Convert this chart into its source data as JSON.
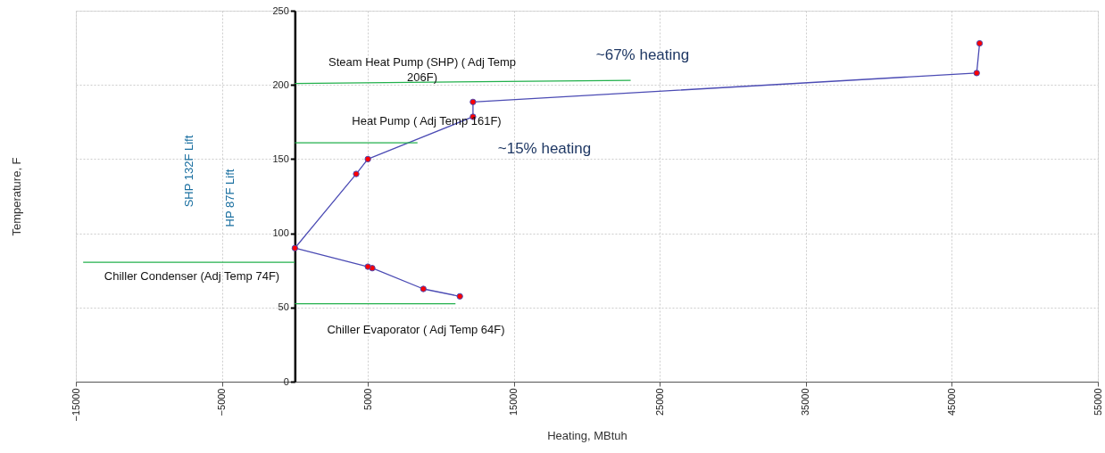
{
  "chart_data": {
    "type": "line",
    "xlabel": "Heating, MBtuh",
    "ylabel": "Temperature, F",
    "xlim": [
      -15000,
      55000
    ],
    "xticks": [
      -15000,
      -5000,
      5000,
      15000,
      25000,
      35000,
      45000,
      55000
    ],
    "ylim": [
      0,
      250
    ],
    "yticks": [
      0,
      50,
      100,
      150,
      200,
      250
    ],
    "grid": true,
    "marker": "circle",
    "line_style": "solid",
    "series": [
      {
        "color": "#4b4bb4",
        "x": [
          11300,
          8800,
          5300,
          5000,
          0,
          4200,
          5000,
          12200,
          12200,
          46700,
          46900
        ],
        "values": [
          57.5,
          62.5,
          76.5,
          77.5,
          90,
          140,
          150,
          178.5,
          188.5,
          208,
          228
        ]
      },
      {
        "color": "#22b04c",
        "marker": "none",
        "x": [
          0,
          23000
        ],
        "values": [
          201,
          203
        ]
      },
      {
        "color": "#22b04c",
        "marker": "none",
        "x": [
          0,
          8400
        ],
        "values": [
          161,
          161
        ]
      },
      {
        "color": "#22b04c",
        "marker": "none",
        "x": [
          -14500,
          0
        ],
        "values": [
          80.5,
          80.5
        ]
      },
      {
        "color": "#22b04c",
        "marker": "none",
        "x": [
          0,
          11000
        ],
        "values": [
          52.5,
          52.5
        ]
      }
    ],
    "annotations": [
      "Steam Heat Pump (SHP) ( Adj Temp\n206F)",
      "Heat Pump ( Adj Temp 161F)",
      "Chiller Condenser (Adj Temp 74F)",
      "Chiller Evaporator ( Adj Temp 64F)",
      "~67% heating",
      "~15% heating",
      "SHP 132F Lift",
      "HP 87F Lift"
    ]
  }
}
